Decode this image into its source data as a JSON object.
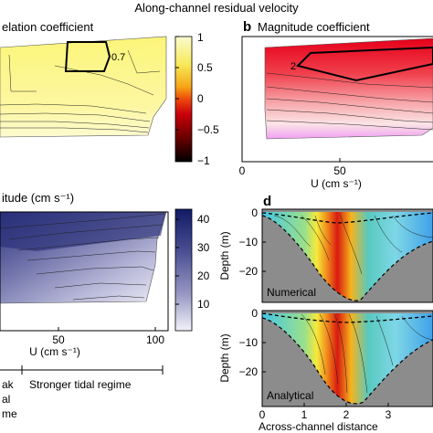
{
  "figure": {
    "title": "Along-channel residual velocity",
    "colors": {
      "land": "#8c8c8c",
      "yellow": "#fdfbb8",
      "red": "#e6001a",
      "navy": "#1a1f6e",
      "lavender": "#dcdcf0"
    }
  },
  "panel_a": {
    "title": "elation coefficient",
    "contour_label": "0.7",
    "colorbar": {
      "ticks": [
        "1",
        "0.5",
        "0",
        "−0.5",
        "−1"
      ]
    }
  },
  "panel_b": {
    "letter": "b",
    "title": "Magnitude coefficient",
    "contour_label": "2",
    "xlabel": "U (cm s⁻¹)",
    "xticks": [
      "0",
      "50"
    ]
  },
  "panel_c": {
    "title": "itude  (cm s⁻¹)",
    "xlabel": "U (cm s⁻¹)",
    "xticks": [
      "50",
      "100"
    ],
    "colorbar": {
      "ticks": [
        "40",
        "30",
        "20",
        "10"
      ]
    }
  },
  "panel_d": {
    "letter": "d",
    "ylabel": "Depth (m)",
    "yticks": [
      "0",
      "−10",
      "−20"
    ],
    "top_label": "Numerical",
    "bottom_label": "Analytical",
    "xlabel": "Across-channel distance",
    "xticks": [
      "0",
      "1",
      "2",
      "3"
    ]
  },
  "regime": {
    "left_lines": [
      "ak",
      "al",
      "me"
    ],
    "right_label": "Stronger tidal regime"
  },
  "chart_data": [
    {
      "type": "heatmap",
      "panel": "a",
      "title": "elation coefficient",
      "colorbar_range": [
        -1,
        1
      ],
      "colorbar_ticks": [
        1,
        0.5,
        0,
        -0.5,
        -1
      ],
      "labeled_contours": [
        0.7
      ]
    },
    {
      "type": "heatmap",
      "panel": "b",
      "title": "Magnitude coefficient",
      "xlabel": "U (cm s⁻¹)",
      "x_ticks": [
        0,
        50
      ],
      "labeled_contours": [
        2
      ]
    },
    {
      "type": "heatmap",
      "panel": "c",
      "title": "itude  (cm s⁻¹)",
      "xlabel": "U (cm s⁻¹)",
      "x_ticks": [
        50,
        100
      ],
      "colorbar_range": [
        0,
        43
      ],
      "colorbar_ticks": [
        40,
        30,
        20,
        10
      ]
    },
    {
      "type": "heatmap",
      "panel": "d",
      "ylabel": "Depth (m)",
      "y_ticks": [
        0,
        -10,
        -20
      ],
      "xlabel": "Across-channel distance",
      "x_ticks": [
        0,
        1,
        2,
        3
      ],
      "subpanels": [
        "Numerical",
        "Analytical"
      ]
    }
  ]
}
